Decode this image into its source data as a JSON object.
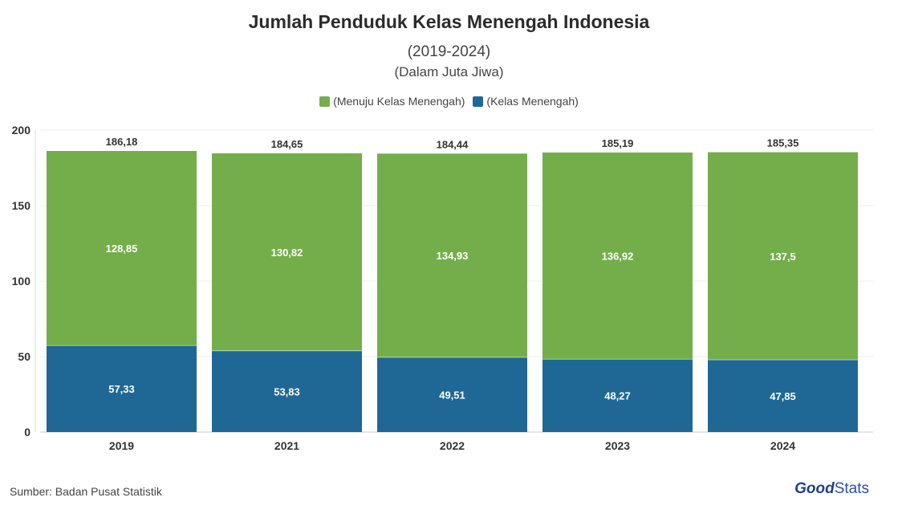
{
  "title": "Jumlah Penduduk Kelas Menengah Indonesia",
  "subtitle": "(2019-2024)",
  "subtitle2": "(Dalam Juta Jiwa)",
  "source": "Sumber: Badan Pusat Statistik",
  "logo": {
    "part1": "Good",
    "part2": "Stats"
  },
  "colors": {
    "green": "#74ae4b",
    "blue": "#1f6895"
  },
  "chart_data": {
    "type": "bar",
    "stacked": true,
    "categories": [
      "2019",
      "2021",
      "2022",
      "2023",
      "2024"
    ],
    "series": [
      {
        "name": "(Kelas Menengah)",
        "color": "#1f6895",
        "values": [
          57.33,
          53.83,
          49.51,
          48.27,
          47.85
        ],
        "labels": [
          "57,33",
          "53,83",
          "49,51",
          "48,27",
          "47,85"
        ]
      },
      {
        "name": "(Menuju Kelas Menengah)",
        "color": "#74ae4b",
        "values": [
          128.85,
          130.82,
          134.93,
          136.92,
          137.5
        ],
        "labels": [
          "128,85",
          "130,82",
          "134,93",
          "136,92",
          "137,5"
        ]
      }
    ],
    "totals": [
      186.18,
      184.65,
      184.44,
      185.19,
      185.35
    ],
    "total_labels": [
      "186,18",
      "184,65",
      "184,44",
      "185,19",
      "185,35"
    ],
    "ylim": [
      0,
      200
    ],
    "yticks": [
      0,
      50,
      100,
      150,
      200
    ],
    "legend_position": "top-center",
    "grid": true
  }
}
